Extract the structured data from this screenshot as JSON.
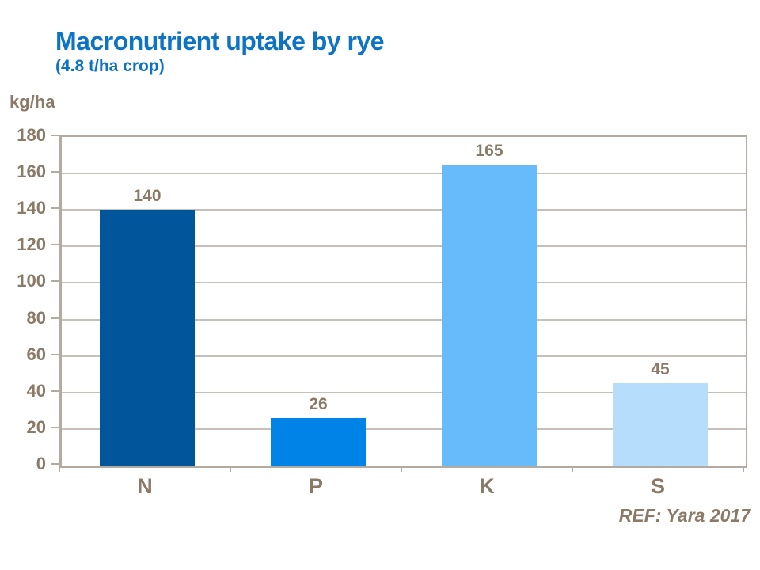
{
  "header": {
    "title": "Macronutrient uptake by rye",
    "subtitle": "(4.8 t/ha crop)"
  },
  "footer": {
    "reference": "REF: Yara 2017"
  },
  "colors": {
    "title_blue": "#0D73C4",
    "text_brown": "#8A7A67",
    "axis_line": "#B3AAA0",
    "gridline": "#C6C0B8",
    "background": "#FFFFFF"
  },
  "chart_data": {
    "type": "bar",
    "title": "Macronutrient uptake by rye",
    "subtitle": "(4.8 t/ha crop)",
    "categories": [
      "N",
      "P",
      "K",
      "S"
    ],
    "values": [
      140,
      26,
      165,
      45
    ],
    "data_labels": [
      140,
      26,
      165,
      45
    ],
    "xlabel": "",
    "ylabel": "kg/ha",
    "ylim": [
      0,
      180
    ],
    "yticks": [
      0,
      20,
      40,
      60,
      80,
      100,
      120,
      140,
      160,
      180
    ],
    "grid": true,
    "legend_position": "none",
    "bar_colors": [
      "#00559B",
      "#0083E6",
      "#68BBFA",
      "#B6DDFB"
    ]
  }
}
